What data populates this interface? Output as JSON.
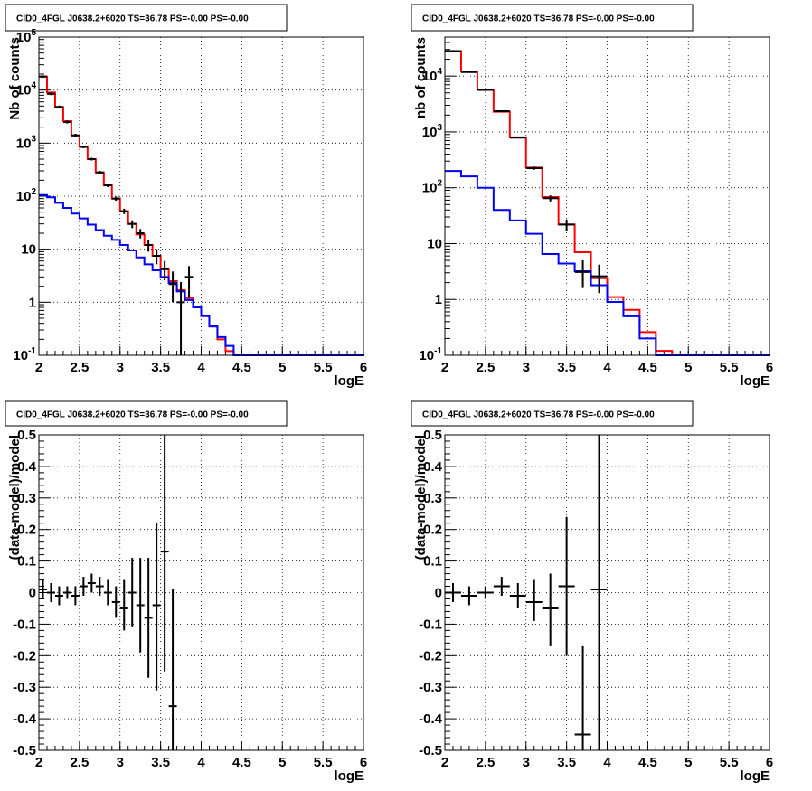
{
  "chart_data": [
    {
      "type": "step",
      "title": "CID0_4FGL J0638.2+6020 TS=36.78 PS=-0.00 PS=-0.00",
      "xlabel": "logE",
      "ylabel": "Nb of counts",
      "xlim": [
        2,
        6
      ],
      "ylim": [
        0.1,
        100000
      ],
      "yscale": "log",
      "grid": true,
      "x_ticks": [
        "2",
        "2.5",
        "3",
        "3.5",
        "4",
        "4.5",
        "5",
        "5.5",
        "6"
      ],
      "y_ticks": [
        "10-1",
        "1",
        "10",
        "102",
        "103",
        "104",
        "105"
      ],
      "bin_width": 0.1,
      "series": [
        {
          "color": "#ff0000",
          "x_edges_start": 2.0,
          "values": [
            18000,
            9000,
            4800,
            2600,
            1400,
            850,
            500,
            280,
            160,
            90,
            52,
            30,
            19,
            12,
            7.5,
            4.3,
            2.5,
            1.7,
            1.2,
            0.8,
            0.55,
            0.35,
            0.2,
            0.12,
            0.1,
            0.1,
            0.1,
            0.1,
            0.1,
            0.1,
            0.1,
            0.1,
            0.1,
            0.1,
            0.1,
            0.1,
            0.1,
            0.1,
            0.1,
            0.1
          ]
        },
        {
          "color": "#0000ff",
          "x_edges_start": 2.0,
          "values": [
            105,
            95,
            75,
            60,
            47,
            38,
            29,
            23,
            18,
            15,
            12,
            9.5,
            7,
            5.2,
            4,
            3,
            2.3,
            1.6,
            1.1,
            0.8,
            0.55,
            0.35,
            0.22,
            0.15,
            0.1,
            0.1,
            0.1,
            0.1,
            0.1,
            0.1,
            0.1,
            0.1,
            0.1,
            0.1,
            0.1,
            0.1,
            0.1,
            0.1,
            0.1,
            0.1
          ]
        },
        {
          "color": "#000000",
          "style": "points-errorbars",
          "x": [
            2.05,
            2.15,
            2.25,
            2.35,
            2.45,
            2.55,
            2.65,
            2.75,
            2.85,
            2.95,
            3.05,
            3.15,
            3.25,
            3.35,
            3.45,
            3.55,
            3.65,
            3.75,
            3.85
          ],
          "y": [
            18000,
            8500,
            4800,
            2500,
            1400,
            850,
            500,
            280,
            160,
            90,
            52,
            30,
            20,
            12,
            7.5,
            4.2,
            2.2,
            1.0,
            3.0
          ],
          "ylow": [
            17000,
            8000,
            4500,
            2350,
            1300,
            800,
            470,
            260,
            148,
            82,
            46,
            25,
            16,
            9,
            5.2,
            2.6,
            1.0,
            0.1,
            1.2
          ],
          "yhigh": [
            19000,
            9000,
            5100,
            2650,
            1500,
            900,
            530,
            300,
            172,
            98,
            58,
            35,
            24,
            15,
            10,
            6,
            3.8,
            2.4,
            4.8
          ]
        }
      ]
    },
    {
      "type": "step",
      "title": "CID0_4FGL J0638.2+6020 TS=36.78 PS=-0.00 PS=-0.00",
      "xlabel": "logE",
      "ylabel": "nb of counts",
      "xlim": [
        2,
        6
      ],
      "ylim": [
        0.1,
        50000
      ],
      "yscale": "log",
      "grid": true,
      "x_ticks": [
        "2",
        "2.5",
        "3",
        "3.5",
        "4",
        "4.5",
        "5",
        "5.5",
        "6"
      ],
      "y_ticks": [
        "10-1",
        "1",
        "10",
        "102",
        "103",
        "104"
      ],
      "bin_width": 0.2,
      "series": [
        {
          "color": "#ff0000",
          "x_edges_start": 2.0,
          "values": [
            28000,
            12000,
            5700,
            2300,
            800,
            230,
            68,
            22,
            7,
            2.4,
            1.1,
            0.65,
            0.26,
            0.12,
            0.1,
            0.1,
            0.1,
            0.1,
            0.1,
            0.1
          ]
        },
        {
          "color": "#0000ff",
          "x_edges_start": 2.0,
          "values": [
            200,
            160,
            100,
            40,
            26,
            15,
            6.5,
            4.4,
            3.2,
            1.8,
            0.9,
            0.5,
            0.2,
            0.1,
            0.1,
            0.1,
            0.1,
            0.1,
            0.1,
            0.1
          ]
        },
        {
          "color": "#000000",
          "style": "points-errorbars",
          "x": [
            2.1,
            2.3,
            2.5,
            2.7,
            2.9,
            3.1,
            3.3,
            3.5,
            3.7,
            3.9
          ],
          "y": [
            28000,
            11800,
            5650,
            2350,
            790,
            225,
            65,
            22,
            3.1,
            2.6
          ],
          "ylow": [
            27500,
            11500,
            5550,
            2300,
            770,
            210,
            57,
            17,
            1.6,
            1.3
          ],
          "yhigh": [
            28500,
            12100,
            5750,
            2400,
            810,
            240,
            73,
            27,
            5.0,
            4.2
          ]
        }
      ]
    },
    {
      "type": "scatter",
      "title": "CID0_4FGL J0638.2+6020 TS=36.78 PS=-0.00 PS=-0.00",
      "xlabel": "logE",
      "ylabel": "(data-model)/model",
      "xlim": [
        2,
        6
      ],
      "ylim": [
        -0.5,
        0.5
      ],
      "grid": true,
      "x_ticks": [
        "2",
        "2.5",
        "3",
        "3.5",
        "4",
        "4.5",
        "5",
        "5.5",
        "6"
      ],
      "y_ticks": [
        "-0.5",
        "-0.4",
        "-0.3",
        "-0.2",
        "-0.1",
        "0",
        "0.1",
        "0.2",
        "0.3",
        "0.4",
        "0.5"
      ],
      "x_half_width": 0.05,
      "points": {
        "x": [
          2.05,
          2.15,
          2.25,
          2.35,
          2.45,
          2.55,
          2.65,
          2.75,
          2.85,
          2.95,
          3.05,
          3.15,
          3.25,
          3.35,
          3.45,
          3.55,
          3.65
        ],
        "y": [
          0.01,
          0.0,
          -0.01,
          0.0,
          -0.01,
          0.02,
          0.03,
          0.02,
          0.0,
          -0.03,
          -0.05,
          0.0,
          -0.04,
          -0.08,
          -0.04,
          0.13,
          -0.36
        ],
        "ylow": [
          -0.02,
          -0.03,
          -0.04,
          -0.02,
          -0.04,
          -0.01,
          0.0,
          -0.01,
          -0.04,
          -0.08,
          -0.12,
          -0.11,
          -0.19,
          -0.27,
          -0.31,
          -0.25,
          -0.5
        ],
        "yhigh": [
          0.04,
          0.03,
          0.02,
          0.02,
          0.02,
          0.05,
          0.06,
          0.05,
          0.04,
          0.02,
          0.04,
          0.11,
          0.11,
          0.11,
          0.22,
          0.5,
          0.01
        ]
      }
    },
    {
      "type": "scatter",
      "title": "CID0_4FGL J0638.2+6020 TS=36.78 PS=-0.00 PS=-0.00",
      "xlabel": "logE",
      "ylabel": "(data-model)/model",
      "xlim": [
        2,
        6
      ],
      "ylim": [
        -0.5,
        0.5
      ],
      "grid": true,
      "x_ticks": [
        "2",
        "2.5",
        "3",
        "3.5",
        "4",
        "4.5",
        "5",
        "5.5",
        "6"
      ],
      "y_ticks": [
        "-0.5",
        "-0.4",
        "-0.3",
        "-0.2",
        "-0.1",
        "0",
        "0.1",
        "0.2",
        "0.3",
        "0.4",
        "0.5"
      ],
      "x_half_width": 0.1,
      "points": {
        "x": [
          2.1,
          2.3,
          2.5,
          2.7,
          2.9,
          3.1,
          3.3,
          3.5,
          3.7,
          3.9
        ],
        "y": [
          0.0,
          -0.01,
          0.0,
          0.02,
          -0.01,
          -0.03,
          -0.05,
          0.02,
          -0.45,
          0.01
        ],
        "ylow": [
          -0.03,
          -0.04,
          -0.02,
          -0.01,
          -0.05,
          -0.09,
          -0.17,
          -0.2,
          -0.5,
          -0.5
        ],
        "yhigh": [
          0.03,
          0.02,
          0.02,
          0.05,
          0.03,
          0.04,
          0.06,
          0.24,
          -0.17,
          0.5
        ]
      }
    }
  ]
}
